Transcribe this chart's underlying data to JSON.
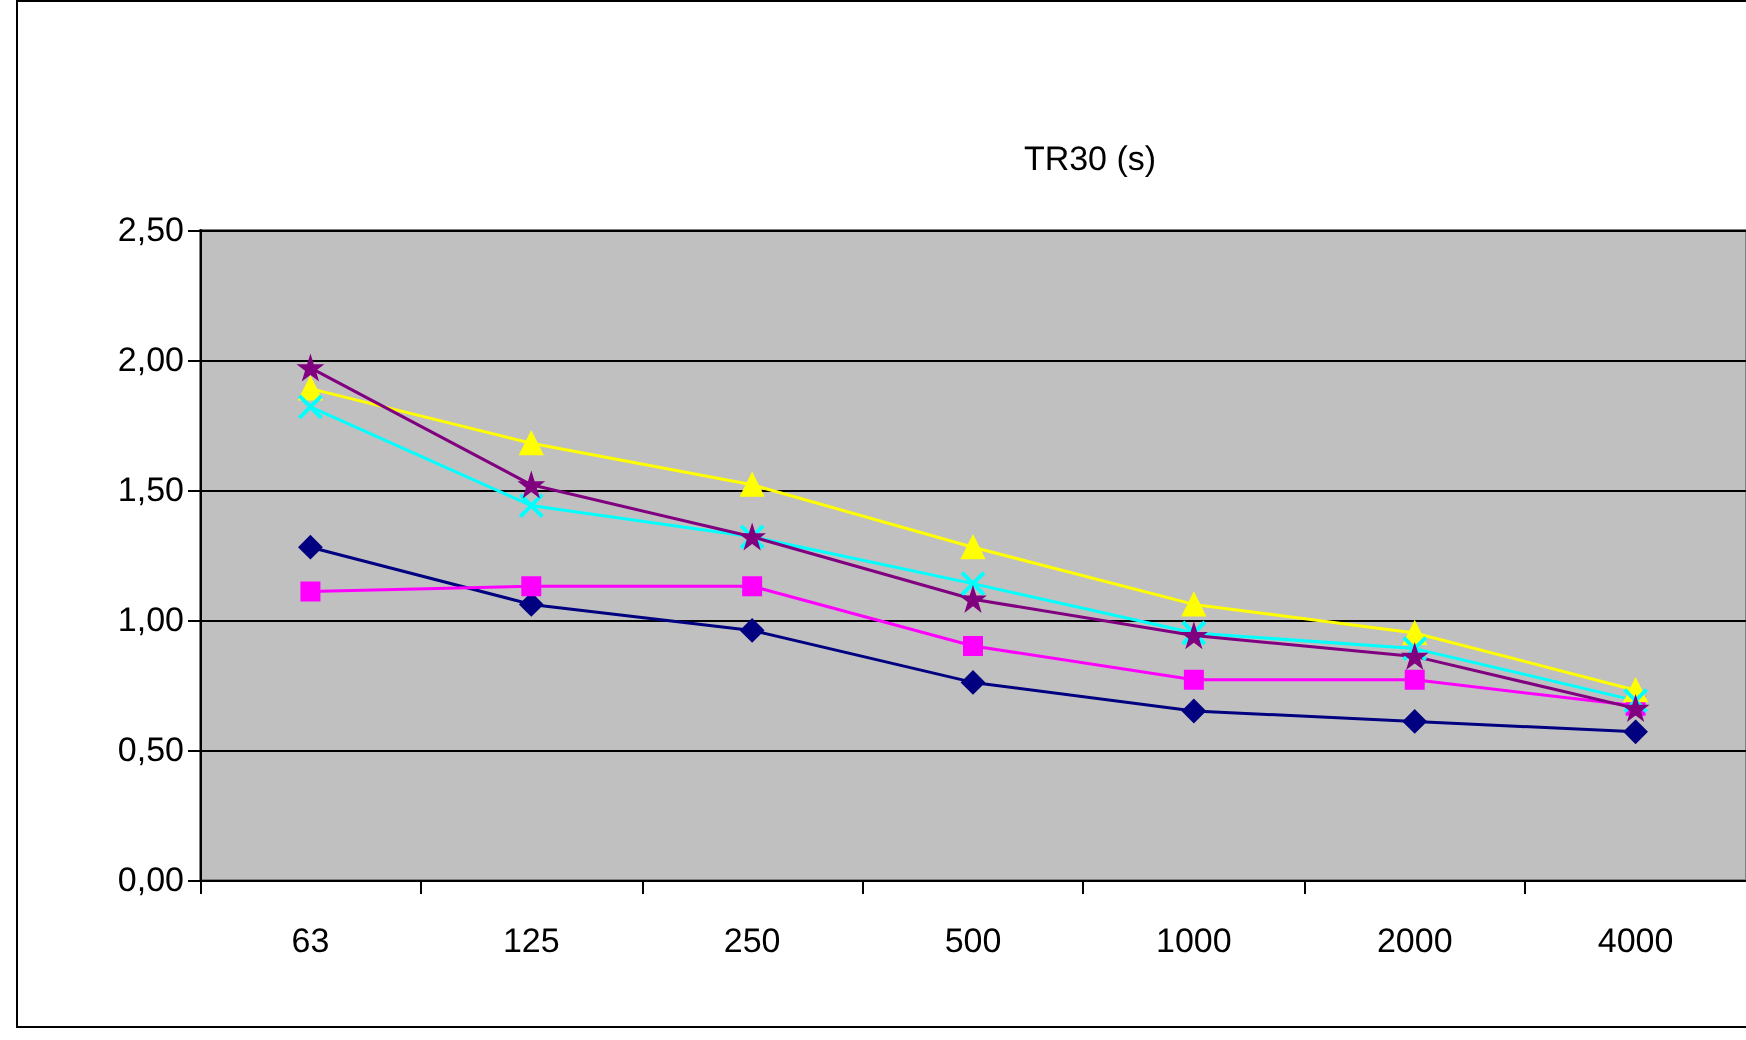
{
  "chart_data": {
    "type": "line",
    "title": "TR30 (s)",
    "categories": [
      "63",
      "125",
      "250",
      "500",
      "1000",
      "2000",
      "4000"
    ],
    "series": [
      {
        "color": "#000080",
        "marker": "diamond",
        "values": [
          1.28,
          1.06,
          0.96,
          0.76,
          0.65,
          0.61,
          0.57
        ]
      },
      {
        "color": "#ff00ff",
        "marker": "square",
        "values": [
          1.11,
          1.13,
          1.13,
          0.9,
          0.77,
          0.77,
          0.67
        ]
      },
      {
        "color": "#ffff00",
        "marker": "triangle",
        "values": [
          1.89,
          1.68,
          1.52,
          1.28,
          1.06,
          0.95,
          0.73
        ]
      },
      {
        "color": "#00ffff",
        "marker": "cross",
        "values": [
          1.82,
          1.44,
          1.32,
          1.14,
          0.95,
          0.89,
          0.69
        ]
      },
      {
        "color": "#800080",
        "marker": "star",
        "values": [
          1.97,
          1.52,
          1.32,
          1.08,
          0.94,
          0.86,
          0.66
        ]
      }
    ],
    "ylim": [
      0,
      2.5
    ],
    "yticks": [
      {
        "value": 0,
        "label": "0,00"
      },
      {
        "value": 0.5,
        "label": "0,50"
      },
      {
        "value": 1,
        "label": "1,00"
      },
      {
        "value": 1.5,
        "label": "1,50"
      },
      {
        "value": 2,
        "label": "2,00"
      },
      {
        "value": 2.5,
        "label": "2,50"
      }
    ],
    "grid": "y",
    "line_style": "solid"
  }
}
